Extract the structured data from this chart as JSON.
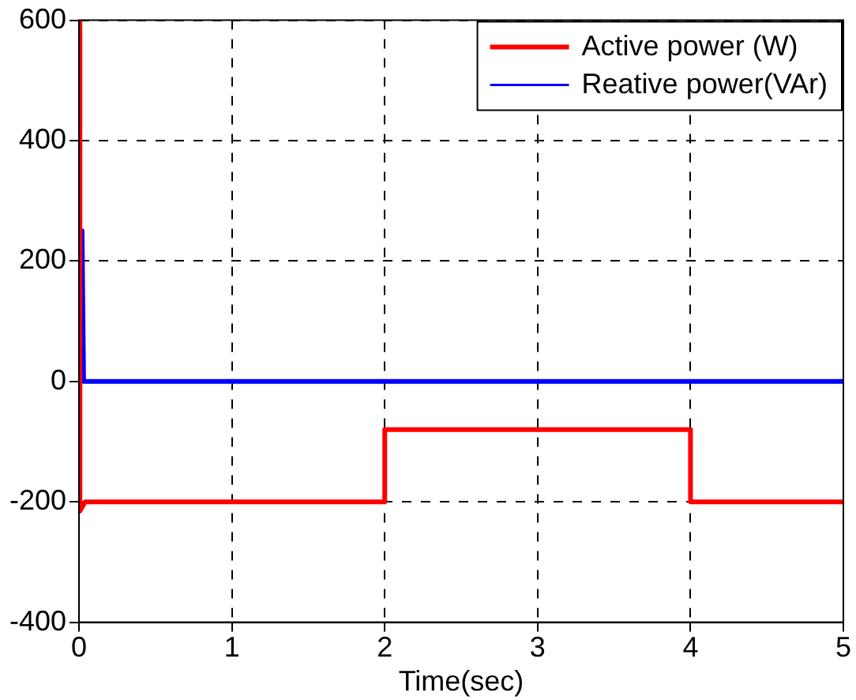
{
  "chart_data": {
    "type": "line",
    "xlabel": "Time(sec)",
    "xlim": [
      0,
      5
    ],
    "xticks": [
      0,
      1,
      2,
      3,
      4,
      5
    ],
    "ylim": [
      -400,
      600
    ],
    "yticks": [
      -400,
      -200,
      0,
      200,
      400,
      600
    ],
    "grid": true,
    "legend": "top right",
    "marker": "none",
    "line_style": "solid",
    "series": [
      {
        "name": "Active power (W)",
        "color": "#ff0000",
        "x": [
          0,
          0.002,
          0.01,
          0.04,
          2,
          2,
          4,
          4,
          5
        ],
        "values": [
          0,
          600,
          -215,
          -200,
          -200,
          -80,
          -80,
          -200,
          -200
        ]
      },
      {
        "name": "Reative power(VAr)",
        "color": "#0000ff",
        "x": [
          0,
          0.02,
          0.03,
          5
        ],
        "values": [
          0,
          250,
          0,
          0
        ]
      }
    ]
  }
}
